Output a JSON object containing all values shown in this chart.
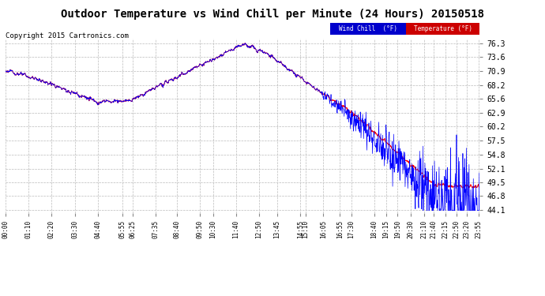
{
  "title": "Outdoor Temperature vs Wind Chill per Minute (24 Hours) 20150518",
  "copyright": "Copyright 2015 Cartronics.com",
  "yticks": [
    44.1,
    46.8,
    49.5,
    52.1,
    54.8,
    57.5,
    60.2,
    62.9,
    65.6,
    68.2,
    70.9,
    73.6,
    76.3
  ],
  "ylim": [
    43.5,
    77.2
  ],
  "xlim": [
    0,
    1439
  ],
  "temp_color": "#FF0000",
  "wind_color": "#0000FF",
  "background_color": "#FFFFFF",
  "grid_color": "#BBBBBB",
  "title_fontsize": 10,
  "copyright_fontsize": 6.5
}
